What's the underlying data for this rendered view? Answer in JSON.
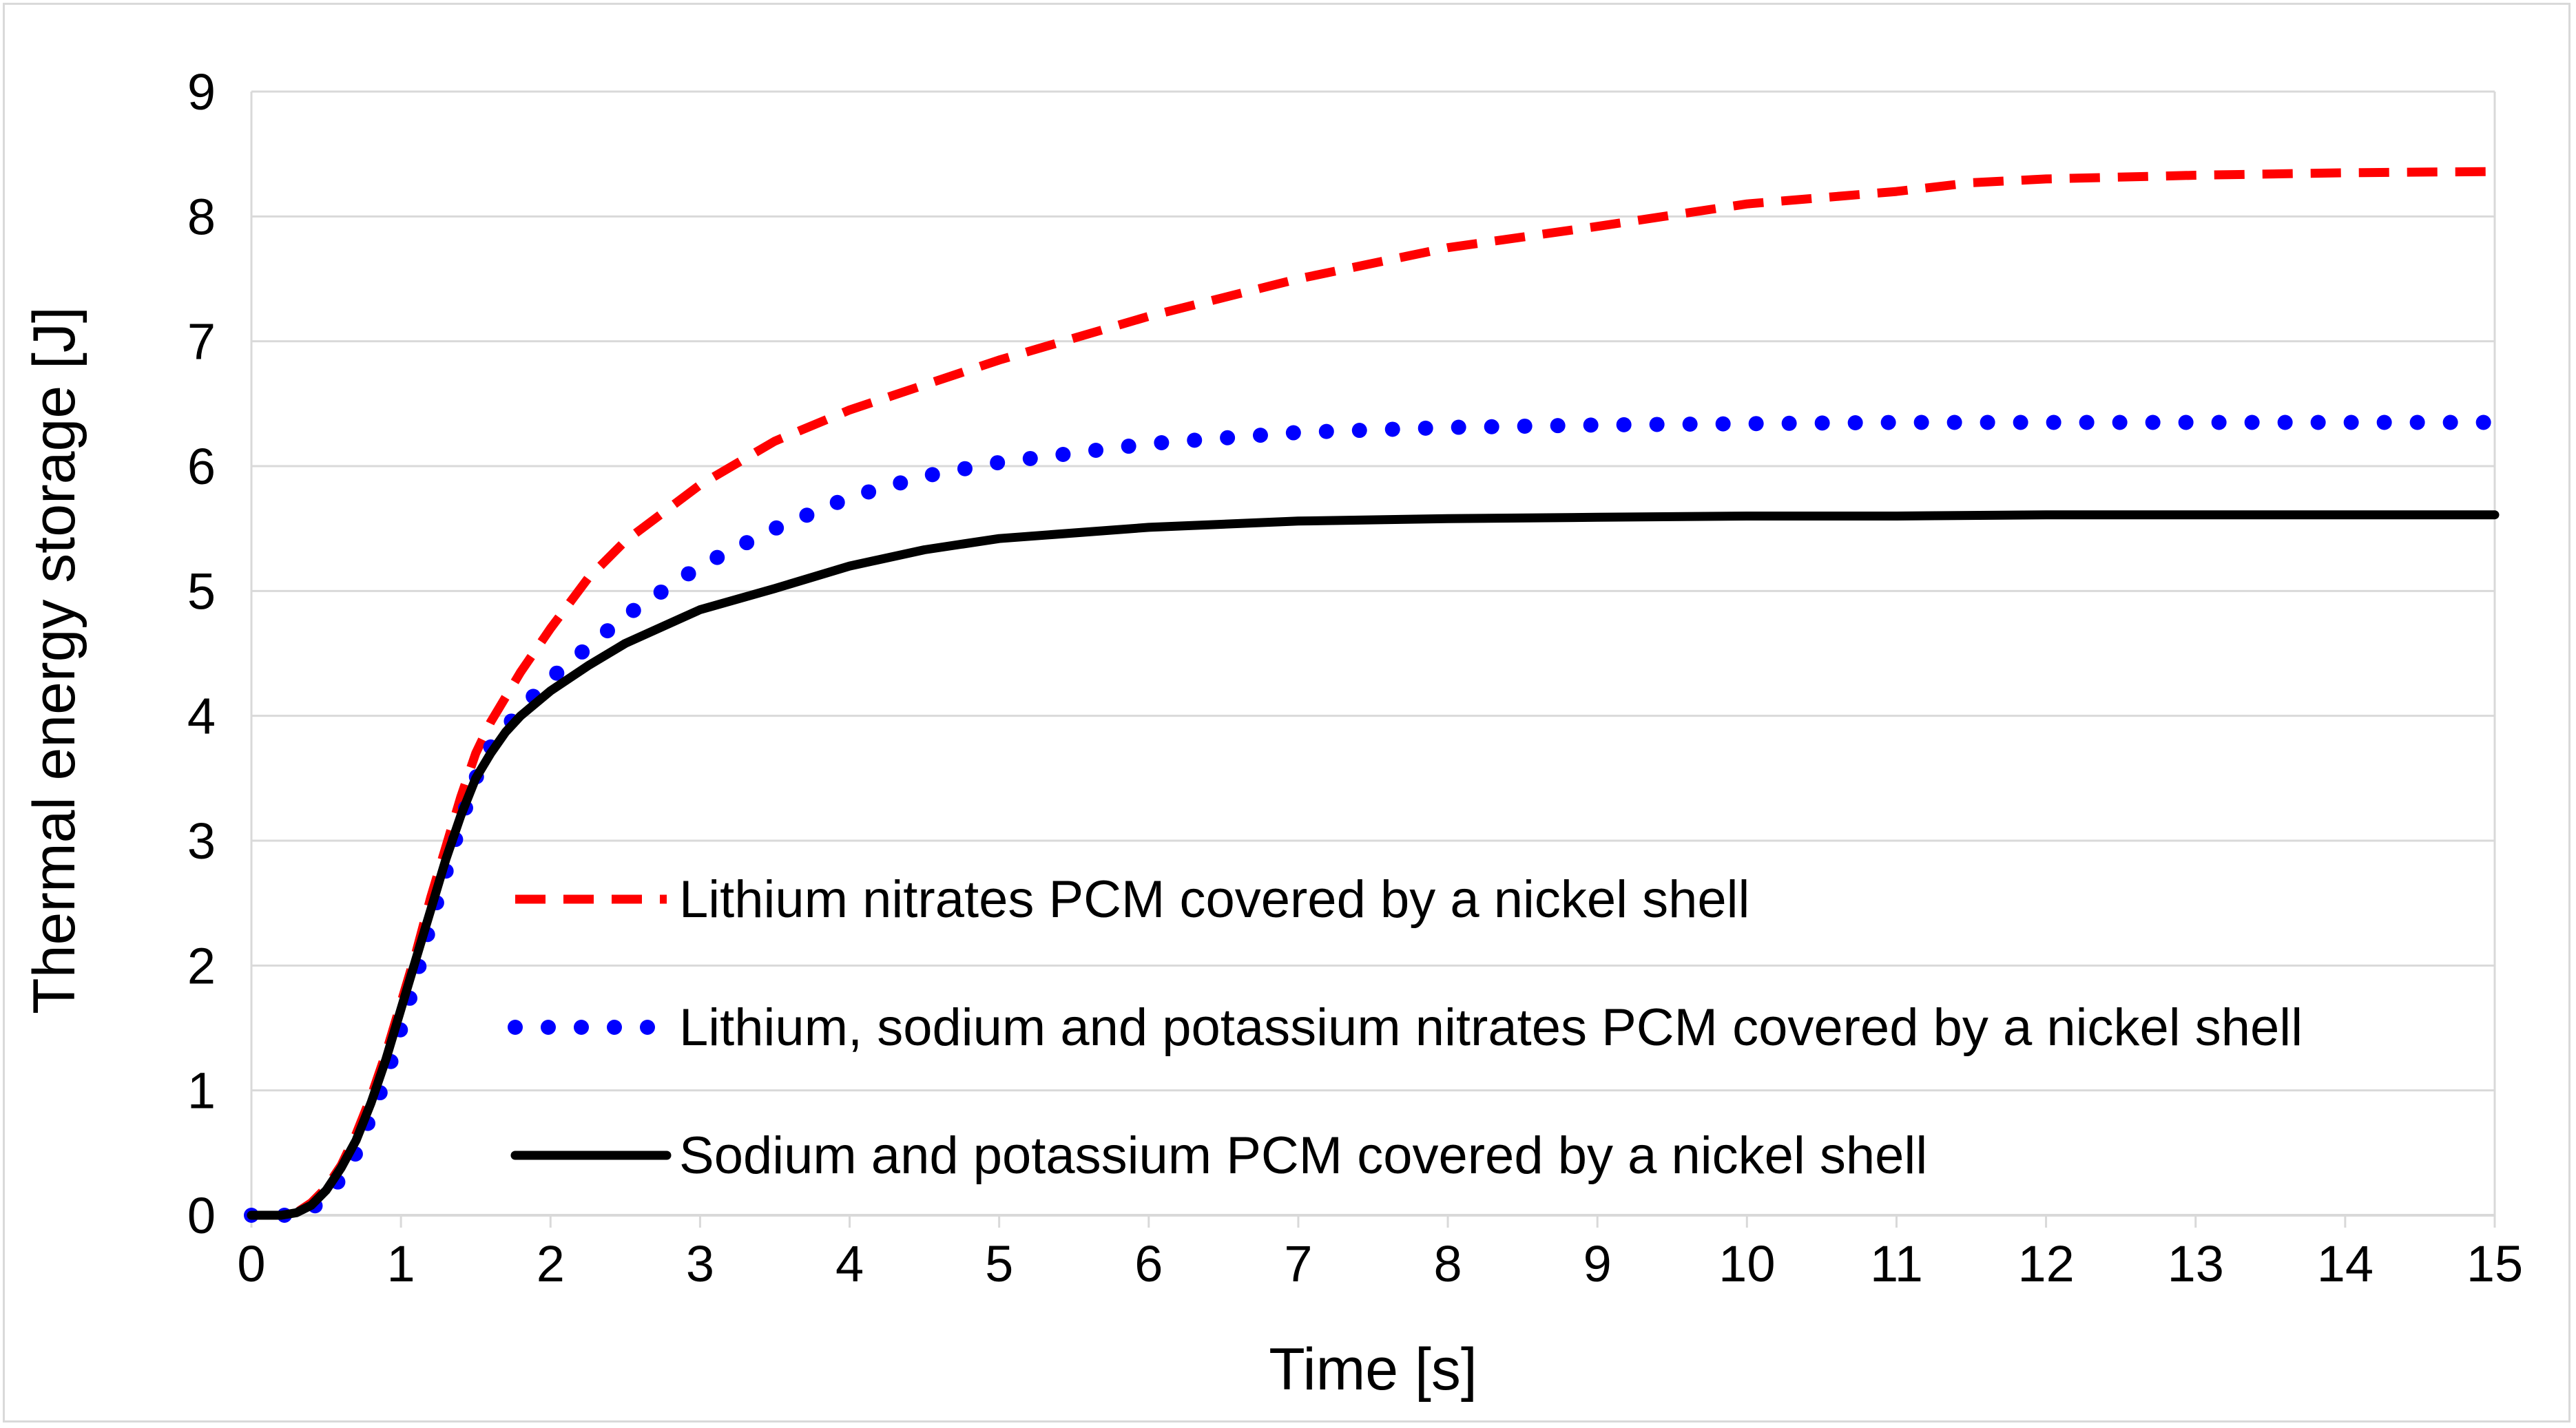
{
  "chart_data": {
    "type": "line",
    "title": "",
    "xlabel": "Time [s]",
    "ylabel": "Thermal energy storage [J]",
    "xlim": [
      0,
      15
    ],
    "ylim": [
      0,
      9
    ],
    "xticks": [
      0,
      1,
      2,
      3,
      4,
      5,
      6,
      7,
      8,
      9,
      10,
      11,
      12,
      13,
      14,
      15
    ],
    "yticks": [
      0,
      1,
      2,
      3,
      4,
      5,
      6,
      7,
      8,
      9
    ],
    "grid": "horizontal",
    "legend_position": "center-left",
    "series": [
      {
        "name": "Lithium nitrates PCM covered by a nickel shell",
        "color": "#ff0000",
        "style": "dashed",
        "x": [
          0,
          0.2,
          0.3,
          0.4,
          0.5,
          0.6,
          0.7,
          0.8,
          0.9,
          1.0,
          1.1,
          1.2,
          1.3,
          1.4,
          1.5,
          1.6,
          1.7,
          1.8,
          2.0,
          2.25,
          2.5,
          3.0,
          3.5,
          4.0,
          4.5,
          5.0,
          6.0,
          7.0,
          8.0,
          9.0,
          10.0,
          11.0,
          11.5,
          12.0,
          13.0,
          14.0,
          15.0
        ],
        "y": [
          0,
          0,
          0.02,
          0.1,
          0.22,
          0.4,
          0.65,
          0.95,
          1.3,
          1.7,
          2.1,
          2.55,
          2.95,
          3.35,
          3.7,
          3.95,
          4.15,
          4.35,
          4.7,
          5.1,
          5.4,
          5.85,
          6.2,
          6.45,
          6.65,
          6.85,
          7.2,
          7.5,
          7.75,
          7.92,
          8.1,
          8.2,
          8.27,
          8.3,
          8.33,
          8.35,
          8.36
        ]
      },
      {
        "name": "Lithium, sodium and potassium nitrates PCM covered by a nickel shell",
        "color": "#0000ff",
        "style": "dotted",
        "x": [
          0,
          0.2,
          0.3,
          0.4,
          0.5,
          0.6,
          0.7,
          0.8,
          0.9,
          1.0,
          1.1,
          1.2,
          1.3,
          1.4,
          1.5,
          1.6,
          1.7,
          1.8,
          2.0,
          2.25,
          2.5,
          3.0,
          3.5,
          4.0,
          4.5,
          5.0,
          6.0,
          7.0,
          8.0,
          9.0,
          10.0,
          11.0,
          12.0,
          13.0,
          14.0,
          15.0
        ],
        "y": [
          0,
          0,
          0,
          0.05,
          0.15,
          0.3,
          0.5,
          0.8,
          1.1,
          1.5,
          1.9,
          2.35,
          2.75,
          3.15,
          3.5,
          3.75,
          3.9,
          4.05,
          4.3,
          4.55,
          4.8,
          5.2,
          5.5,
          5.75,
          5.92,
          6.03,
          6.18,
          6.27,
          6.31,
          6.33,
          6.34,
          6.35,
          6.35,
          6.35,
          6.35,
          6.35
        ]
      },
      {
        "name": "Sodium and potassium PCM covered by a nickel shell",
        "color": "#000000",
        "style": "solid",
        "x": [
          0,
          0.2,
          0.3,
          0.4,
          0.5,
          0.6,
          0.7,
          0.8,
          0.9,
          1.0,
          1.1,
          1.2,
          1.3,
          1.4,
          1.5,
          1.6,
          1.7,
          1.8,
          2.0,
          2.25,
          2.5,
          3.0,
          3.5,
          4.0,
          4.5,
          5.0,
          6.0,
          7.0,
          8.0,
          9.0,
          10.0,
          11.0,
          12.0,
          13.0,
          14.0,
          15.0
        ],
        "y": [
          0,
          0,
          0.02,
          0.08,
          0.2,
          0.38,
          0.6,
          0.9,
          1.25,
          1.65,
          2.05,
          2.45,
          2.85,
          3.2,
          3.5,
          3.7,
          3.87,
          4.0,
          4.2,
          4.4,
          4.58,
          4.85,
          5.02,
          5.2,
          5.33,
          5.42,
          5.51,
          5.56,
          5.58,
          5.59,
          5.6,
          5.6,
          5.61,
          5.61,
          5.61,
          5.61
        ]
      }
    ]
  }
}
